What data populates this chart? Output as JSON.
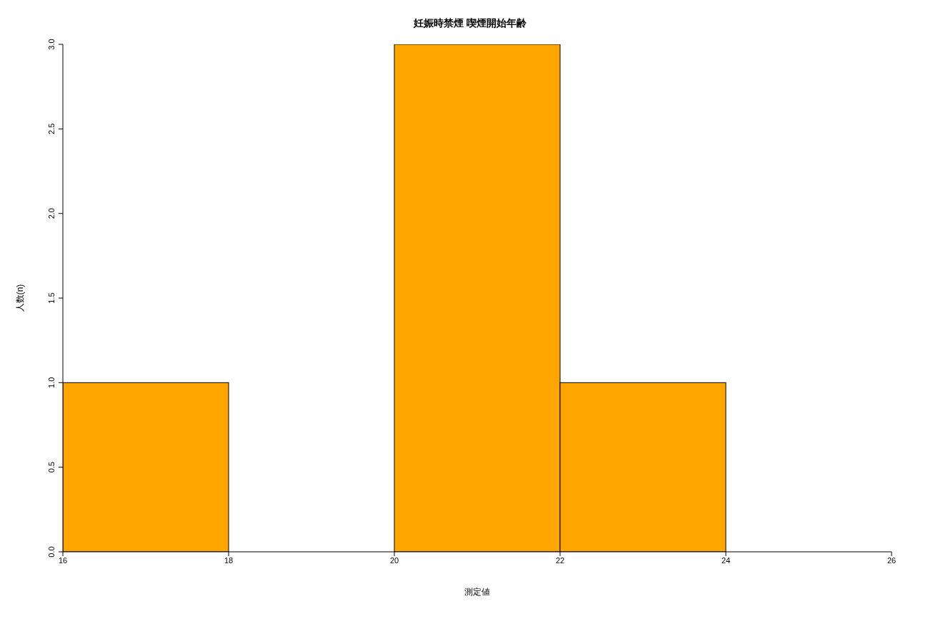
{
  "chart_data": {
    "type": "histogram",
    "title": "妊娠時禁煙 喫煙開始年齢",
    "xlabel": "測定値",
    "ylabel": "人数(n)",
    "bins": [
      16,
      18,
      20,
      22,
      24
    ],
    "values": [
      1,
      0,
      3,
      1
    ],
    "color": "#ffa500",
    "xlim": [
      16,
      26
    ],
    "xticks": [
      16,
      18,
      20,
      22,
      24,
      26
    ],
    "ylim": [
      0,
      3
    ],
    "yticks": [
      {
        "value": 0,
        "label": "0.0"
      },
      {
        "value": 0.5,
        "label": "0.5"
      },
      {
        "value": 1,
        "label": "1.0"
      },
      {
        "value": 1.5,
        "label": "1.5"
      },
      {
        "value": 2,
        "label": "2.0"
      },
      {
        "value": 2.5,
        "label": "2.5"
      },
      {
        "value": 3,
        "label": "3.0"
      }
    ],
    "grid": false
  }
}
